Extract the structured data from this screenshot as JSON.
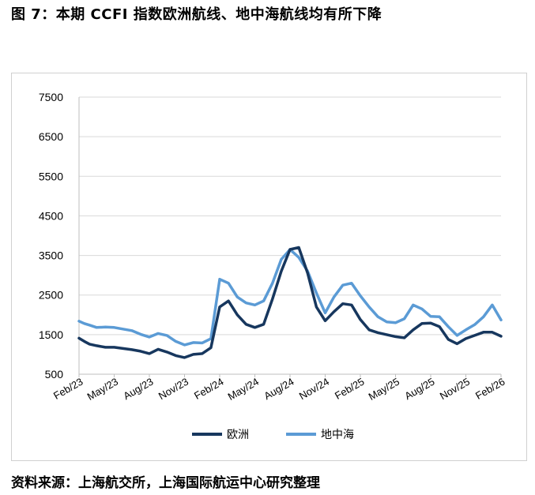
{
  "page": {
    "title": "图 7：本期 CCFI 指数欧洲航线、地中海航线均有所下降",
    "source": "资料来源：上海航交所，上海国际航运中心研究整理"
  },
  "chart_data": {
    "type": "line",
    "ylim": [
      500,
      7500
    ],
    "yticks": [
      "7500",
      "6500",
      "5500",
      "4500",
      "3500",
      "2500",
      "1500",
      "500"
    ],
    "xticks": [
      "Feb/23",
      "May/23",
      "Aug/23",
      "Nov/23",
      "Feb/24",
      "May/24",
      "Aug/24",
      "Nov/24",
      "Feb/25",
      "May/25",
      "Aug/25",
      "Nov/25",
      "Feb/26"
    ],
    "grid": true,
    "legend_position": "bottom",
    "series": [
      {
        "name": "欧洲",
        "color": "#17375e",
        "x": [
          0,
          0.15,
          0.3,
          0.5,
          0.75,
          1,
          1.25,
          1.5,
          1.75,
          2,
          2.25,
          2.5,
          2.75,
          3,
          3.25,
          3.5,
          3.75,
          4,
          4.25,
          4.5,
          4.75,
          5,
          5.25,
          5.5,
          5.75,
          6,
          6.25,
          6.5,
          6.75,
          7,
          7.25,
          7.5,
          7.75,
          8,
          8.25,
          8.5,
          8.75,
          9,
          9.25,
          9.5,
          9.75,
          10,
          10.25,
          10.5,
          10.75,
          11,
          11.25,
          11.5,
          11.75,
          12
        ],
        "values": [
          1410,
          1330,
          1260,
          1220,
          1180,
          1180,
          1150,
          1120,
          1080,
          1020,
          1130,
          1060,
          970,
          920,
          1000,
          1020,
          1170,
          2200,
          2350,
          2000,
          1760,
          1680,
          1760,
          2400,
          3100,
          3650,
          3700,
          3050,
          2200,
          1850,
          2080,
          2280,
          2250,
          1880,
          1620,
          1550,
          1500,
          1450,
          1420,
          1620,
          1780,
          1790,
          1700,
          1380,
          1270,
          1400,
          1480,
          1560,
          1560,
          1460
        ]
      },
      {
        "name": "地中海",
        "color": "#5b9bd5",
        "x": [
          0,
          0.15,
          0.3,
          0.5,
          0.75,
          1,
          1.25,
          1.5,
          1.75,
          2,
          2.25,
          2.5,
          2.75,
          3,
          3.25,
          3.5,
          3.75,
          4,
          4.25,
          4.5,
          4.75,
          5,
          5.25,
          5.5,
          5.75,
          6,
          6.25,
          6.5,
          6.75,
          7,
          7.25,
          7.5,
          7.75,
          8,
          8.25,
          8.5,
          8.75,
          9,
          9.25,
          9.5,
          9.75,
          10,
          10.25,
          10.5,
          10.75,
          11,
          11.25,
          11.5,
          11.75,
          12
        ],
        "values": [
          1840,
          1780,
          1740,
          1680,
          1690,
          1680,
          1640,
          1600,
          1510,
          1440,
          1530,
          1480,
          1330,
          1240,
          1300,
          1290,
          1400,
          2900,
          2800,
          2450,
          2300,
          2250,
          2350,
          2800,
          3400,
          3650,
          3450,
          3100,
          2550,
          2050,
          2450,
          2750,
          2800,
          2480,
          2200,
          1950,
          1820,
          1800,
          1900,
          2250,
          2150,
          1960,
          1950,
          1700,
          1480,
          1620,
          1750,
          1950,
          2250,
          1870
        ]
      }
    ]
  }
}
